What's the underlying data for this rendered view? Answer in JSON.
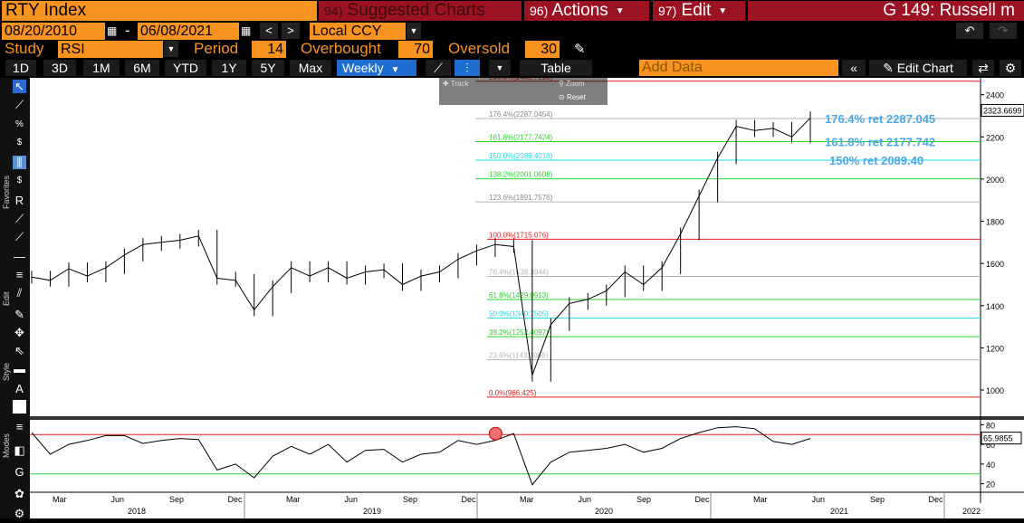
{
  "header": {
    "title": "RTY Index",
    "suggested_num": "94)",
    "suggested_label": "Suggested Charts",
    "actions_num": "96)",
    "actions_label": "Actions",
    "edit_num": "97)",
    "edit_label": "Edit",
    "security_label": "G 149: Russell m"
  },
  "dates": {
    "start": "08/20/2010",
    "sep": "-",
    "end": "06/08/2021",
    "currency": "Local CCY"
  },
  "study": {
    "label": "Study",
    "value": "RSI",
    "period_label": "Period",
    "period": "14",
    "overbought_label": "Overbought",
    "overbought": "70",
    "oversold_label": "Oversold",
    "oversold": "30"
  },
  "toolbar": {
    "ranges": [
      "1D",
      "3D",
      "1M",
      "6M",
      "YTD",
      "1Y",
      "5Y",
      "Max"
    ],
    "frequency": "Weekly",
    "table_label": "Table",
    "add_data_placeholder": "Add Data",
    "edit_chart_label": "Edit Chart"
  },
  "overlay": {
    "track_label": "Track",
    "zoom_label": "Zoom",
    "reset_label": "Reset"
  },
  "left_labels": {
    "favorites": "Favorites",
    "edit": "Edit",
    "style": "Style",
    "modes": "Modes"
  },
  "chart_data": {
    "type": "line",
    "title": "",
    "price_axis": {
      "ticks": [
        "2400",
        "2200",
        "2000",
        "1800",
        "1600",
        "1400",
        "1200",
        "1000"
      ],
      "ylim": [
        880,
        2480
      ]
    },
    "rsi_axis": {
      "ticks": [
        "80",
        "60",
        "40",
        "20"
      ],
      "ylim": [
        15,
        85
      ]
    },
    "last_price": "2323.6699",
    "last_rsi": "65.9855",
    "x_month_ticks": [
      "Mar",
      "Jun",
      "Sep",
      "Dec",
      "Mar",
      "Jun",
      "Sep",
      "Dec",
      "Mar",
      "Jun",
      "Sep",
      "Dec",
      "Mar",
      "Jun",
      "Sep",
      "Dec"
    ],
    "x_year_labels": [
      "2018",
      "2019",
      "2020",
      "2021",
      "2022"
    ],
    "fib_low": [
      {
        "label": "100.0%(1715.076)",
        "value": 1715.076,
        "color": "#e0201e"
      },
      {
        "label": "76.4%(1538.3944)",
        "value": 1538.3944,
        "color": "#b4b4b4"
      },
      {
        "label": "61.8%(1429.0913)",
        "value": 1429.0913,
        "color": "#2bd22b"
      },
      {
        "label": "50.0%(1340.7505)",
        "value": 1340.7505,
        "color": "#22d8e6"
      },
      {
        "label": "38.2%(1252.4097)",
        "value": 1252.4097,
        "color": "#2bd22b"
      },
      {
        "label": "23.6%(1143.1066)",
        "value": 1143.1066,
        "color": "#b4b4b4"
      },
      {
        "label": "0.0%(966.425)",
        "value": 966.425,
        "color": "#e0201e"
      }
    ],
    "fib_ext": [
      {
        "label": "200.0%(2463.7218)",
        "value": 2463.7218,
        "color": "#e0201e"
      },
      {
        "label": "176.4%(2287.0454)",
        "value": 2287.0454,
        "color": "#b4b4b4"
      },
      {
        "label": "161.8%(2177.7424)",
        "value": 2177.7424,
        "color": "#2bd22b"
      },
      {
        "label": "150.0%(2089.4016)",
        "value": 2089.4016,
        "color": "#22d8e6"
      },
      {
        "label": "138.2%(2001.0608)",
        "value": 2001.0608,
        "color": "#2bd22b"
      },
      {
        "label": "123.6%(1891.7576)",
        "value": 1891.7576,
        "color": "#b4b4b4"
      }
    ],
    "annotations": [
      {
        "text": "176.4% ret 2287.045",
        "value": 2287.045
      },
      {
        "text": "161.8% ret 2177.742",
        "value": 2177.742
      },
      {
        "text": "150% ret 2089.40",
        "value": 2089.4
      }
    ],
    "price_series": {
      "name": "RTY Index",
      "x": [
        "2017-12",
        "2018-01",
        "2018-02",
        "2018-03",
        "2018-04",
        "2018-05",
        "2018-06",
        "2018-07",
        "2018-08",
        "2018-09",
        "2018-10",
        "2018-11",
        "2018-12",
        "2019-01",
        "2019-02",
        "2019-03",
        "2019-04",
        "2019-05",
        "2019-06",
        "2019-07",
        "2019-08",
        "2019-09",
        "2019-10",
        "2019-11",
        "2019-12",
        "2020-01",
        "2020-02",
        "2020-03",
        "2020-04",
        "2020-05",
        "2020-06",
        "2020-07",
        "2020-08",
        "2020-09",
        "2020-10",
        "2020-11",
        "2020-12",
        "2021-01",
        "2021-02",
        "2021-03",
        "2021-04",
        "2021-05",
        "2021-06"
      ],
      "values": [
        1535,
        1520,
        1575,
        1540,
        1580,
        1640,
        1690,
        1700,
        1710,
        1730,
        1530,
        1520,
        1380,
        1490,
        1580,
        1540,
        1580,
        1530,
        1560,
        1570,
        1500,
        1540,
        1560,
        1620,
        1660,
        1690,
        1680,
        1070,
        1310,
        1410,
        1430,
        1470,
        1560,
        1500,
        1580,
        1740,
        1920,
        2100,
        2250,
        2230,
        2240,
        2200,
        2290
      ]
    },
    "rsi_series": {
      "name": "RSI",
      "x": [
        "2017-12",
        "2018-01",
        "2018-02",
        "2018-03",
        "2018-04",
        "2018-05",
        "2018-06",
        "2018-07",
        "2018-08",
        "2018-09",
        "2018-10",
        "2018-11",
        "2018-12",
        "2019-01",
        "2019-02",
        "2019-03",
        "2019-04",
        "2019-05",
        "2019-06",
        "2019-07",
        "2019-08",
        "2019-09",
        "2019-10",
        "2019-11",
        "2019-12",
        "2020-01",
        "2020-02",
        "2020-03",
        "2020-04",
        "2020-05",
        "2020-06",
        "2020-07",
        "2020-08",
        "2020-09",
        "2020-10",
        "2020-11",
        "2020-12",
        "2021-01",
        "2021-02",
        "2021-03",
        "2021-04",
        "2021-05",
        "2021-06"
      ],
      "values": [
        72,
        50,
        60,
        64,
        69,
        69,
        61,
        64,
        66,
        65,
        34,
        40,
        26,
        48,
        58,
        50,
        60,
        42,
        54,
        55,
        42,
        50,
        52,
        64,
        60,
        64,
        71,
        19,
        42,
        52,
        54,
        56,
        60,
        52,
        56,
        66,
        72,
        77,
        78,
        76,
        63,
        60,
        66
      ]
    },
    "rsi_bands": {
      "overbought": 70,
      "oversold": 30
    },
    "grid": false
  }
}
